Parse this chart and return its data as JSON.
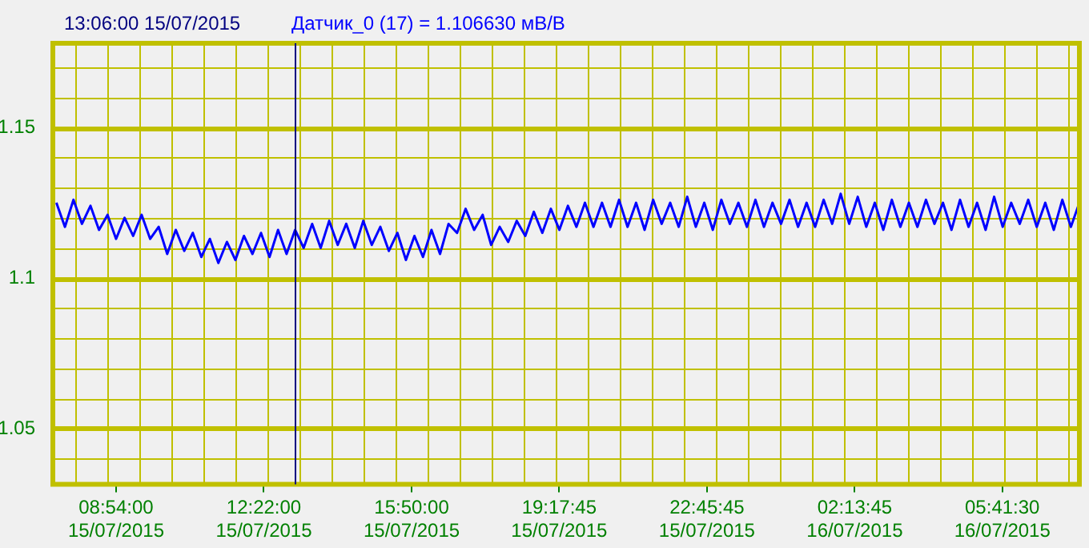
{
  "chart_data": {
    "type": "line",
    "title": "Датчик_0 (17) = 1.106630 мВ/В",
    "x": [
      "2015-07-15T07:30",
      "2015-07-15T07:42",
      "2015-07-15T07:54",
      "2015-07-15T08:06",
      "2015-07-15T08:18",
      "2015-07-15T08:30",
      "2015-07-15T08:42",
      "2015-07-15T08:54",
      "2015-07-15T09:06",
      "2015-07-15T09:18",
      "2015-07-15T09:30",
      "2015-07-15T09:42",
      "2015-07-15T09:54",
      "2015-07-15T10:06",
      "2015-07-15T10:18",
      "2015-07-15T10:30",
      "2015-07-15T10:42",
      "2015-07-15T10:54",
      "2015-07-15T11:06",
      "2015-07-15T11:18",
      "2015-07-15T11:30",
      "2015-07-15T11:42",
      "2015-07-15T11:54",
      "2015-07-15T12:06",
      "2015-07-15T12:18",
      "2015-07-15T12:30",
      "2015-07-15T12:42",
      "2015-07-15T12:54",
      "2015-07-15T13:06",
      "2015-07-15T13:18",
      "2015-07-15T13:30",
      "2015-07-15T13:42",
      "2015-07-15T13:54",
      "2015-07-15T14:06",
      "2015-07-15T14:18",
      "2015-07-15T14:30",
      "2015-07-15T14:42",
      "2015-07-15T14:54",
      "2015-07-15T15:06",
      "2015-07-15T15:18",
      "2015-07-15T15:30",
      "2015-07-15T15:42",
      "2015-07-15T15:54",
      "2015-07-15T16:06",
      "2015-07-15T16:18",
      "2015-07-15T16:30",
      "2015-07-15T16:42",
      "2015-07-15T16:54",
      "2015-07-15T17:06",
      "2015-07-15T17:18",
      "2015-07-15T17:30",
      "2015-07-15T17:42",
      "2015-07-15T17:54",
      "2015-07-15T18:06",
      "2015-07-15T18:18",
      "2015-07-15T18:30",
      "2015-07-15T18:42",
      "2015-07-15T18:54",
      "2015-07-15T19:06",
      "2015-07-15T19:18",
      "2015-07-15T19:30",
      "2015-07-15T19:42",
      "2015-07-15T19:54",
      "2015-07-15T20:06",
      "2015-07-15T20:18",
      "2015-07-15T20:30",
      "2015-07-15T20:42",
      "2015-07-15T20:54",
      "2015-07-15T21:06",
      "2015-07-15T21:18",
      "2015-07-15T21:30",
      "2015-07-15T21:42",
      "2015-07-15T21:54",
      "2015-07-15T22:06",
      "2015-07-15T22:18",
      "2015-07-15T22:30",
      "2015-07-15T22:42",
      "2015-07-15T22:54",
      "2015-07-15T23:06",
      "2015-07-15T23:18",
      "2015-07-15T23:30",
      "2015-07-15T23:42",
      "2015-07-15T23:54",
      "2015-07-16T00:06",
      "2015-07-16T00:18",
      "2015-07-16T00:30",
      "2015-07-16T00:42",
      "2015-07-16T00:54",
      "2015-07-16T01:06",
      "2015-07-16T01:18",
      "2015-07-16T01:30",
      "2015-07-16T01:42",
      "2015-07-16T01:54",
      "2015-07-16T02:06",
      "2015-07-16T02:18",
      "2015-07-16T02:30",
      "2015-07-16T02:42",
      "2015-07-16T02:54",
      "2015-07-16T03:06",
      "2015-07-16T03:18",
      "2015-07-16T03:30",
      "2015-07-16T03:42",
      "2015-07-16T03:54",
      "2015-07-16T04:06",
      "2015-07-16T04:18",
      "2015-07-16T04:30",
      "2015-07-16T04:42",
      "2015-07-16T04:54",
      "2015-07-16T05:06",
      "2015-07-16T05:18",
      "2015-07-16T05:30",
      "2015-07-16T05:42",
      "2015-07-16T05:54",
      "2015-07-16T06:06",
      "2015-07-16T06:18",
      "2015-07-16T06:30",
      "2015-07-16T06:42",
      "2015-07-16T06:54",
      "2015-07-16T07:06",
      "2015-07-16T07:18",
      "2015-07-16T07:30"
    ],
    "series": [
      {
        "color": "#0000ff",
        "values": [
          1.125,
          1.117,
          1.126,
          1.118,
          1.124,
          1.116,
          1.121,
          1.113,
          1.12,
          1.114,
          1.121,
          1.113,
          1.117,
          1.108,
          1.116,
          1.109,
          1.115,
          1.107,
          1.113,
          1.105,
          1.112,
          1.106,
          1.114,
          1.108,
          1.115,
          1.107,
          1.116,
          1.108,
          1.116,
          1.11,
          1.118,
          1.11,
          1.119,
          1.111,
          1.118,
          1.11,
          1.119,
          1.111,
          1.117,
          1.109,
          1.115,
          1.106,
          1.114,
          1.107,
          1.116,
          1.108,
          1.118,
          1.115,
          1.123,
          1.116,
          1.121,
          1.111,
          1.117,
          1.112,
          1.119,
          1.114,
          1.122,
          1.115,
          1.123,
          1.116,
          1.124,
          1.117,
          1.125,
          1.117,
          1.125,
          1.117,
          1.126,
          1.117,
          1.125,
          1.116,
          1.126,
          1.118,
          1.125,
          1.117,
          1.127,
          1.117,
          1.125,
          1.116,
          1.126,
          1.118,
          1.125,
          1.117,
          1.126,
          1.117,
          1.125,
          1.118,
          1.126,
          1.117,
          1.125,
          1.117,
          1.126,
          1.118,
          1.128,
          1.118,
          1.127,
          1.117,
          1.125,
          1.116,
          1.126,
          1.117,
          1.125,
          1.117,
          1.126,
          1.118,
          1.125,
          1.116,
          1.126,
          1.117,
          1.125,
          1.116,
          1.127,
          1.117,
          1.125,
          1.118,
          1.126,
          1.117,
          1.125,
          1.116,
          1.126,
          1.117,
          1.125
        ]
      }
    ],
    "xlim": [
      "2015-07-15T07:25",
      "2015-07-16T07:30"
    ],
    "ylim": [
      1.0315,
      1.178
    ],
    "xticks": [
      {
        "value": "2015-07-15T08:54:00",
        "label": "08:54:00 15/07/2015"
      },
      {
        "value": "2015-07-15T12:22:00",
        "label": "12:22:00 15/07/2015"
      },
      {
        "value": "2015-07-15T15:50:00",
        "label": "15:50:00 15/07/2015"
      },
      {
        "value": "2015-07-15T19:17:45",
        "label": "19:17:45 15/07/2015"
      },
      {
        "value": "2015-07-15T22:45:45",
        "label": "22:45:45 15/07/2015"
      },
      {
        "value": "2015-07-16T02:13:45",
        "label": "02:13:45 16/07/2015"
      },
      {
        "value": "2015-07-16T05:41:30",
        "label": "05:41:30 16/07/2015"
      }
    ],
    "yticks": [
      {
        "value": 1.04,
        "label": null
      },
      1.05,
      {
        "value": 1.06,
        "label": null
      },
      {
        "value": 1.07,
        "label": null
      },
      {
        "value": 1.08,
        "label": null
      },
      {
        "value": 1.09,
        "label": null
      },
      1.1,
      {
        "value": 1.11,
        "label": null
      },
      {
        "value": 1.12,
        "label": null
      },
      {
        "value": 1.13,
        "label": null
      },
      {
        "value": 1.14,
        "label": null
      },
      1.15,
      {
        "value": 1.16,
        "label": null
      },
      {
        "value": 1.17,
        "label": null
      }
    ],
    "ref_lines": [
      {
        "axis": "x",
        "value": "2015-07-15T13:06:00",
        "label": "13:06:00 15/07/2015",
        "color": "#000080"
      }
    ],
    "grid": true,
    "legend": false,
    "marker": "none",
    "line_style": "solid"
  }
}
